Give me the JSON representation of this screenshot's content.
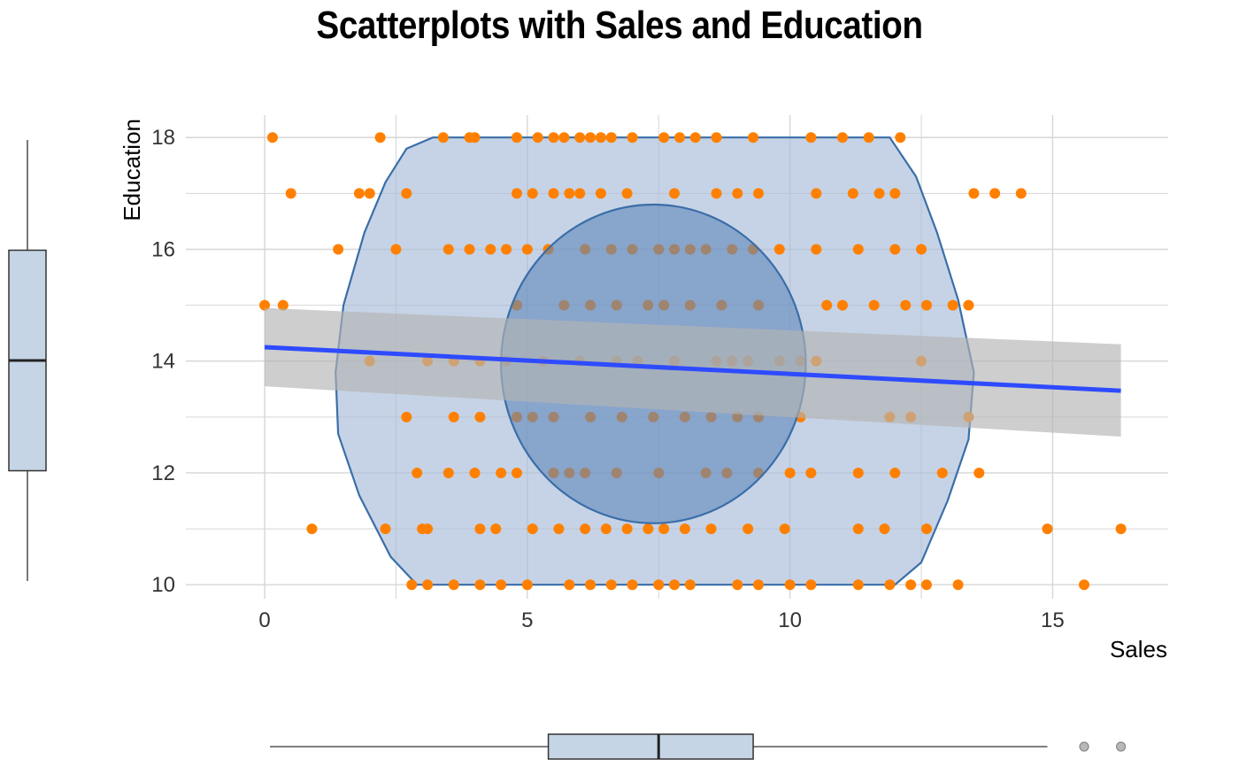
{
  "chart_data": {
    "type": "scatter",
    "title": "Scatterplots with Sales and Education",
    "xlabel": "Sales",
    "ylabel": "Education",
    "xlim": [
      -1.5,
      17.2
    ],
    "ylim": [
      9.75,
      18.4
    ],
    "xticks": [
      0,
      5,
      10,
      15
    ],
    "yticks": [
      10,
      12,
      14,
      16,
      18
    ],
    "grid": true,
    "colors": {
      "points": "#ff8000",
      "regression_line": "#2e4bff",
      "confidence_band": "#b3b3b3",
      "outer_hull": "#a8bcd8",
      "inner_ellipse": "#5f87ba",
      "boxplot_fill": "#c5d5e6"
    },
    "points": [
      {
        "x": 0.15,
        "y": 18
      },
      {
        "x": 2.2,
        "y": 18
      },
      {
        "x": 3.4,
        "y": 18
      },
      {
        "x": 3.9,
        "y": 18
      },
      {
        "x": 4.0,
        "y": 18
      },
      {
        "x": 4.8,
        "y": 18
      },
      {
        "x": 5.2,
        "y": 18
      },
      {
        "x": 5.5,
        "y": 18
      },
      {
        "x": 5.7,
        "y": 18
      },
      {
        "x": 6.0,
        "y": 18
      },
      {
        "x": 6.2,
        "y": 18
      },
      {
        "x": 6.4,
        "y": 18
      },
      {
        "x": 6.6,
        "y": 18
      },
      {
        "x": 7.0,
        "y": 18
      },
      {
        "x": 7.6,
        "y": 18
      },
      {
        "x": 7.9,
        "y": 18
      },
      {
        "x": 8.2,
        "y": 18
      },
      {
        "x": 8.6,
        "y": 18
      },
      {
        "x": 9.3,
        "y": 18
      },
      {
        "x": 10.4,
        "y": 18
      },
      {
        "x": 11.0,
        "y": 18
      },
      {
        "x": 11.5,
        "y": 18
      },
      {
        "x": 12.1,
        "y": 18
      },
      {
        "x": 0.5,
        "y": 17
      },
      {
        "x": 1.8,
        "y": 17
      },
      {
        "x": 2.0,
        "y": 17
      },
      {
        "x": 2.7,
        "y": 17
      },
      {
        "x": 4.8,
        "y": 17
      },
      {
        "x": 5.1,
        "y": 17
      },
      {
        "x": 5.5,
        "y": 17
      },
      {
        "x": 5.8,
        "y": 17
      },
      {
        "x": 6.0,
        "y": 17
      },
      {
        "x": 6.4,
        "y": 17
      },
      {
        "x": 6.9,
        "y": 17
      },
      {
        "x": 7.8,
        "y": 17
      },
      {
        "x": 8.6,
        "y": 17
      },
      {
        "x": 9.0,
        "y": 17
      },
      {
        "x": 9.4,
        "y": 17
      },
      {
        "x": 10.5,
        "y": 17
      },
      {
        "x": 11.2,
        "y": 17
      },
      {
        "x": 11.7,
        "y": 17
      },
      {
        "x": 12.0,
        "y": 17
      },
      {
        "x": 13.5,
        "y": 17
      },
      {
        "x": 13.9,
        "y": 17
      },
      {
        "x": 14.4,
        "y": 17
      },
      {
        "x": 1.4,
        "y": 16
      },
      {
        "x": 2.5,
        "y": 16
      },
      {
        "x": 3.5,
        "y": 16
      },
      {
        "x": 3.9,
        "y": 16
      },
      {
        "x": 4.3,
        "y": 16
      },
      {
        "x": 4.6,
        "y": 16
      },
      {
        "x": 5.0,
        "y": 16
      },
      {
        "x": 5.4,
        "y": 16
      },
      {
        "x": 6.1,
        "y": 16
      },
      {
        "x": 6.6,
        "y": 16
      },
      {
        "x": 7.0,
        "y": 16
      },
      {
        "x": 7.5,
        "y": 16
      },
      {
        "x": 7.8,
        "y": 16
      },
      {
        "x": 8.1,
        "y": 16
      },
      {
        "x": 8.4,
        "y": 16
      },
      {
        "x": 8.9,
        "y": 16
      },
      {
        "x": 9.3,
        "y": 16
      },
      {
        "x": 9.8,
        "y": 16
      },
      {
        "x": 10.5,
        "y": 16
      },
      {
        "x": 11.3,
        "y": 16
      },
      {
        "x": 12.0,
        "y": 16
      },
      {
        "x": 12.5,
        "y": 16
      },
      {
        "x": 0.0,
        "y": 15
      },
      {
        "x": 0.35,
        "y": 15
      },
      {
        "x": 4.8,
        "y": 15
      },
      {
        "x": 5.7,
        "y": 15
      },
      {
        "x": 6.2,
        "y": 15
      },
      {
        "x": 6.7,
        "y": 15
      },
      {
        "x": 7.3,
        "y": 15
      },
      {
        "x": 7.6,
        "y": 15
      },
      {
        "x": 8.1,
        "y": 15
      },
      {
        "x": 8.7,
        "y": 15
      },
      {
        "x": 9.4,
        "y": 15
      },
      {
        "x": 10.7,
        "y": 15
      },
      {
        "x": 11.0,
        "y": 15
      },
      {
        "x": 11.6,
        "y": 15
      },
      {
        "x": 12.2,
        "y": 15
      },
      {
        "x": 12.6,
        "y": 15
      },
      {
        "x": 13.1,
        "y": 15
      },
      {
        "x": 13.4,
        "y": 15
      },
      {
        "x": 2.0,
        "y": 14
      },
      {
        "x": 3.1,
        "y": 14
      },
      {
        "x": 3.6,
        "y": 14
      },
      {
        "x": 4.1,
        "y": 14
      },
      {
        "x": 4.6,
        "y": 14
      },
      {
        "x": 5.3,
        "y": 14
      },
      {
        "x": 6.0,
        "y": 14
      },
      {
        "x": 6.7,
        "y": 14
      },
      {
        "x": 7.1,
        "y": 14
      },
      {
        "x": 7.8,
        "y": 14
      },
      {
        "x": 8.6,
        "y": 14
      },
      {
        "x": 8.9,
        "y": 14
      },
      {
        "x": 9.2,
        "y": 14
      },
      {
        "x": 9.8,
        "y": 14
      },
      {
        "x": 10.2,
        "y": 14
      },
      {
        "x": 10.5,
        "y": 14
      },
      {
        "x": 12.5,
        "y": 14
      },
      {
        "x": 2.7,
        "y": 13
      },
      {
        "x": 3.6,
        "y": 13
      },
      {
        "x": 4.1,
        "y": 13
      },
      {
        "x": 4.8,
        "y": 13
      },
      {
        "x": 5.1,
        "y": 13
      },
      {
        "x": 5.5,
        "y": 13
      },
      {
        "x": 6.2,
        "y": 13
      },
      {
        "x": 6.8,
        "y": 13
      },
      {
        "x": 7.4,
        "y": 13
      },
      {
        "x": 8.0,
        "y": 13
      },
      {
        "x": 8.5,
        "y": 13
      },
      {
        "x": 9.0,
        "y": 13
      },
      {
        "x": 9.4,
        "y": 13
      },
      {
        "x": 10.2,
        "y": 13
      },
      {
        "x": 11.9,
        "y": 13
      },
      {
        "x": 12.3,
        "y": 13
      },
      {
        "x": 13.4,
        "y": 13
      },
      {
        "x": 2.9,
        "y": 12
      },
      {
        "x": 3.5,
        "y": 12
      },
      {
        "x": 4.0,
        "y": 12
      },
      {
        "x": 4.5,
        "y": 12
      },
      {
        "x": 4.8,
        "y": 12
      },
      {
        "x": 5.5,
        "y": 12
      },
      {
        "x": 5.8,
        "y": 12
      },
      {
        "x": 6.1,
        "y": 12
      },
      {
        "x": 6.7,
        "y": 12
      },
      {
        "x": 7.5,
        "y": 12
      },
      {
        "x": 8.4,
        "y": 12
      },
      {
        "x": 8.8,
        "y": 12
      },
      {
        "x": 9.4,
        "y": 12
      },
      {
        "x": 10.0,
        "y": 12
      },
      {
        "x": 10.4,
        "y": 12
      },
      {
        "x": 11.3,
        "y": 12
      },
      {
        "x": 12.0,
        "y": 12
      },
      {
        "x": 12.9,
        "y": 12
      },
      {
        "x": 13.6,
        "y": 12
      },
      {
        "x": 0.9,
        "y": 11
      },
      {
        "x": 2.3,
        "y": 11
      },
      {
        "x": 3.0,
        "y": 11
      },
      {
        "x": 3.1,
        "y": 11
      },
      {
        "x": 4.1,
        "y": 11
      },
      {
        "x": 4.4,
        "y": 11
      },
      {
        "x": 5.1,
        "y": 11
      },
      {
        "x": 5.6,
        "y": 11
      },
      {
        "x": 6.1,
        "y": 11
      },
      {
        "x": 6.5,
        "y": 11
      },
      {
        "x": 6.9,
        "y": 11
      },
      {
        "x": 7.3,
        "y": 11
      },
      {
        "x": 7.6,
        "y": 11
      },
      {
        "x": 8.0,
        "y": 11
      },
      {
        "x": 8.5,
        "y": 11
      },
      {
        "x": 9.2,
        "y": 11
      },
      {
        "x": 9.9,
        "y": 11
      },
      {
        "x": 11.3,
        "y": 11
      },
      {
        "x": 11.8,
        "y": 11
      },
      {
        "x": 12.6,
        "y": 11
      },
      {
        "x": 14.9,
        "y": 11
      },
      {
        "x": 16.3,
        "y": 11
      },
      {
        "x": 2.8,
        "y": 10
      },
      {
        "x": 3.1,
        "y": 10
      },
      {
        "x": 3.6,
        "y": 10
      },
      {
        "x": 4.1,
        "y": 10
      },
      {
        "x": 4.5,
        "y": 10
      },
      {
        "x": 5.0,
        "y": 10
      },
      {
        "x": 5.8,
        "y": 10
      },
      {
        "x": 6.2,
        "y": 10
      },
      {
        "x": 6.6,
        "y": 10
      },
      {
        "x": 7.0,
        "y": 10
      },
      {
        "x": 7.5,
        "y": 10
      },
      {
        "x": 7.8,
        "y": 10
      },
      {
        "x": 8.1,
        "y": 10
      },
      {
        "x": 9.0,
        "y": 10
      },
      {
        "x": 9.4,
        "y": 10
      },
      {
        "x": 10.0,
        "y": 10
      },
      {
        "x": 10.4,
        "y": 10
      },
      {
        "x": 11.3,
        "y": 10
      },
      {
        "x": 11.9,
        "y": 10
      },
      {
        "x": 12.3,
        "y": 10
      },
      {
        "x": 12.6,
        "y": 10
      },
      {
        "x": 13.2,
        "y": 10
      },
      {
        "x": 15.6,
        "y": 10
      }
    ],
    "regression": {
      "x": [
        0,
        16.3
      ],
      "y": [
        14.25,
        13.47
      ]
    },
    "confidence_band": {
      "x": [
        0,
        16.3
      ],
      "upper": [
        14.95,
        14.3
      ],
      "lower": [
        13.55,
        12.65
      ]
    },
    "outer_hull": [
      {
        "x": 3.2,
        "y": 18
      },
      {
        "x": 11.9,
        "y": 18
      },
      {
        "x": 12.4,
        "y": 17.3
      },
      {
        "x": 12.8,
        "y": 16.3
      },
      {
        "x": 13.2,
        "y": 15.1
      },
      {
        "x": 13.5,
        "y": 13.8
      },
      {
        "x": 13.4,
        "y": 12.6
      },
      {
        "x": 13.0,
        "y": 11.5
      },
      {
        "x": 12.5,
        "y": 10.4
      },
      {
        "x": 12.0,
        "y": 10
      },
      {
        "x": 2.9,
        "y": 10
      },
      {
        "x": 2.4,
        "y": 10.5
      },
      {
        "x": 1.8,
        "y": 11.6
      },
      {
        "x": 1.4,
        "y": 12.7
      },
      {
        "x": 1.35,
        "y": 13.8
      },
      {
        "x": 1.5,
        "y": 15.0
      },
      {
        "x": 1.9,
        "y": 16.3
      },
      {
        "x": 2.3,
        "y": 17.2
      },
      {
        "x": 2.7,
        "y": 17.8
      }
    ],
    "inner_ellipse": {
      "center_x": 7.4,
      "center_y": 13.95,
      "radius_x": 2.9,
      "radius_y": 2.85
    },
    "x_boxplot": {
      "min": 0.1,
      "q1": 5.4,
      "median": 7.5,
      "q3": 9.3,
      "max": 14.9,
      "outliers": [
        15.6,
        16.3
      ]
    },
    "y_boxplot": {
      "min": 10,
      "q1": 12,
      "median": 14,
      "q3": 16,
      "max": 18
    }
  }
}
